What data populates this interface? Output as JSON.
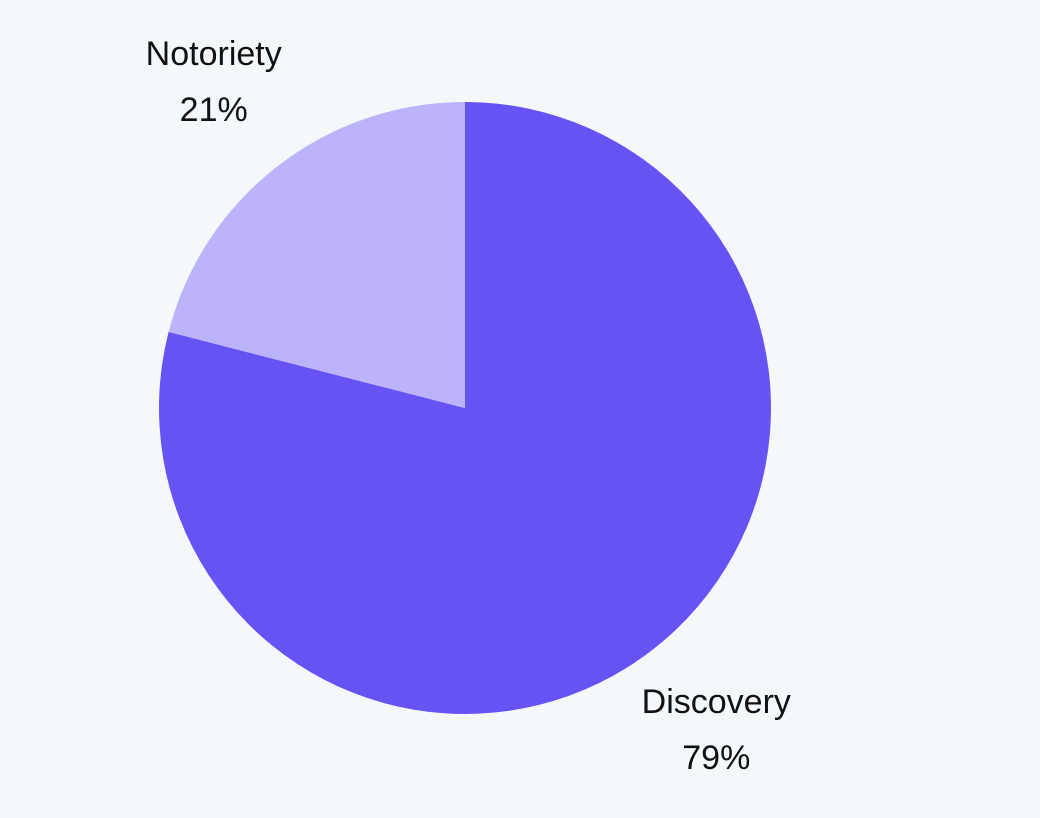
{
  "chart_data": {
    "type": "pie",
    "categories": [
      "Discovery",
      "Notoriety"
    ],
    "values": [
      79,
      21
    ],
    "value_labels": [
      "79%",
      "21%"
    ],
    "colors": [
      "#6653f4",
      "#bdb3fa"
    ]
  }
}
